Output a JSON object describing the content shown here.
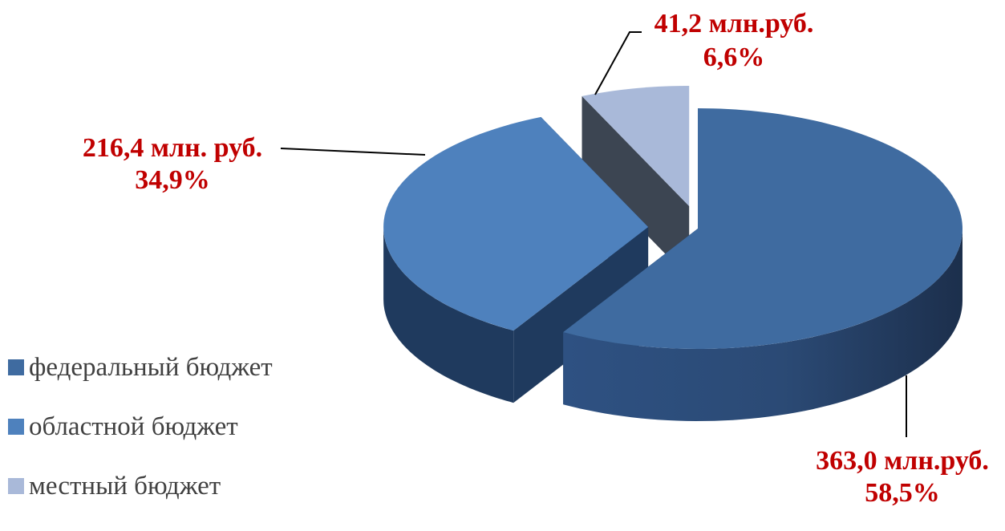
{
  "chart_data": {
    "type": "pie",
    "style": "3d-exploded",
    "slices": [
      {
        "name": "федеральный бюджет",
        "value": 363.0,
        "percent": 58.5,
        "label": "363,0 млн.руб.",
        "pct_label": "58,5%"
      },
      {
        "name": "областной бюджет",
        "value": 216.4,
        "percent": 34.9,
        "label": "216,4 млн. руб.",
        "pct_label": "34,9%"
      },
      {
        "name": "местный бюджет",
        "value": 41.2,
        "percent": 6.6,
        "label": "41,2 млн.руб.",
        "pct_label": "6,6%"
      }
    ],
    "colors": {
      "federal": "#3f6ba0",
      "regional": "#4e81bd",
      "local": "#a9b9d9",
      "label_text": "#c00000",
      "legend_text": "#404040"
    },
    "legend_position": "bottom-left"
  }
}
